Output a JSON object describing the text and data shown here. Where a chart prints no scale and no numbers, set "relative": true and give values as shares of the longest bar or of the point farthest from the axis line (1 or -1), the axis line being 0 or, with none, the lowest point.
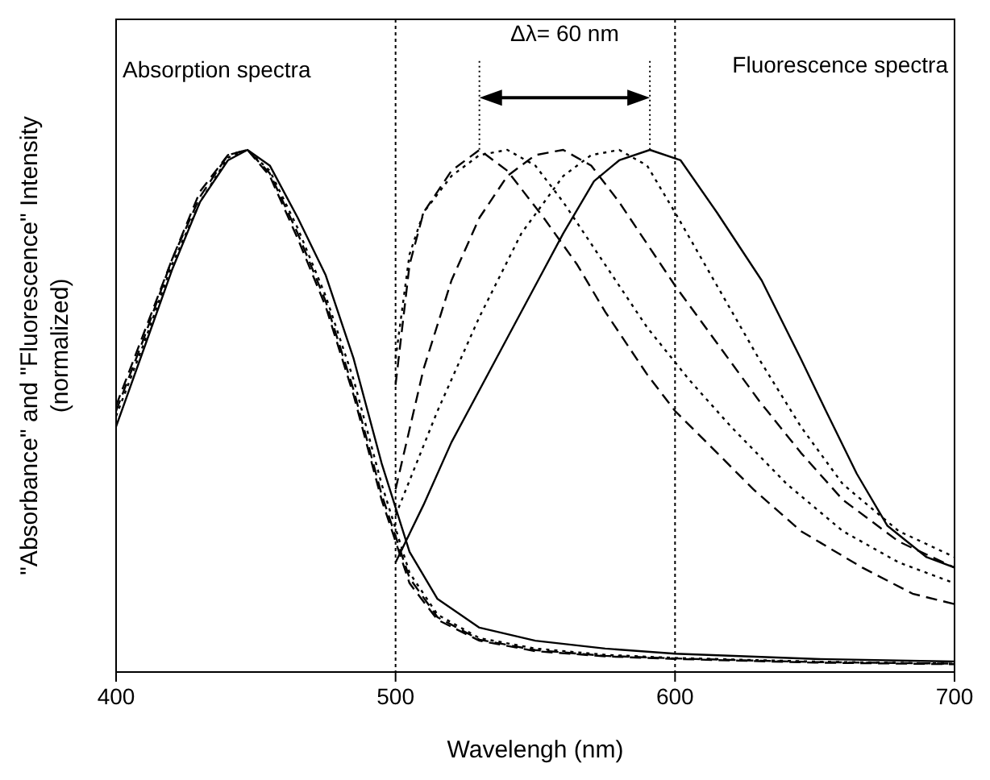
{
  "chart_data": {
    "type": "line",
    "xlabel": "Wavelengh (nm)",
    "ylabel": "\"Absorbance\" and \"Fluorescence\" Intensity (normalized)",
    "relative": true,
    "xlim": [
      400,
      700
    ],
    "xticks": [
      400,
      500,
      600,
      700
    ],
    "grid": true,
    "marker": "none",
    "annotations": [
      "Absorption spectra",
      "Fluorescence spectra",
      "Δλ= 60 nm"
    ],
    "x": [
      400,
      410,
      420,
      430,
      440,
      447,
      455,
      465,
      475,
      485,
      495,
      505,
      515,
      530,
      550,
      575,
      600,
      650,
      700
    ],
    "series": [
      {
        "color": "#000000",
        "line_style": "solid",
        "values": [
          0.47,
          0.62,
          0.77,
          0.9,
          0.98,
          1.0,
          0.97,
          0.87,
          0.76,
          0.6,
          0.4,
          0.23,
          0.14,
          0.085,
          0.06,
          0.045,
          0.035,
          0.025,
          0.02
        ]
      },
      {
        "color": "#000000",
        "line_style": "dashed",
        "values": [
          0.5,
          0.64,
          0.79,
          0.91,
          0.99,
          1.0,
          0.95,
          0.83,
          0.7,
          0.53,
          0.33,
          0.17,
          0.1,
          0.06,
          0.04,
          0.03,
          0.025,
          0.018,
          0.015
        ]
      },
      {
        "color": "#000000",
        "line_style": "dotted",
        "values": [
          0.49,
          0.63,
          0.78,
          0.9,
          0.985,
          1.0,
          0.96,
          0.85,
          0.72,
          0.56,
          0.36,
          0.19,
          0.11,
          0.065,
          0.045,
          0.033,
          0.027,
          0.02,
          0.016
        ]
      },
      {
        "color": "#000000",
        "line_style": "dashed",
        "values": [
          0.51,
          0.65,
          0.79,
          0.92,
          0.99,
          1.0,
          0.955,
          0.84,
          0.71,
          0.54,
          0.34,
          0.18,
          0.105,
          0.062,
          0.042,
          0.031,
          0.026,
          0.019,
          0.016
        ]
      },
      {
        "color": "#000000",
        "line_style": "dashed",
        "x": [
          500,
          505,
          510,
          520,
          530,
          540,
          553,
          565,
          575,
          590,
          600,
          615,
          628,
          645,
          667,
          685,
          700
        ],
        "values": [
          0.55,
          0.78,
          0.88,
          0.96,
          1.0,
          0.96,
          0.87,
          0.78,
          0.69,
          0.57,
          0.5,
          0.42,
          0.35,
          0.27,
          0.2,
          0.15,
          0.13
        ]
      },
      {
        "color": "#000000",
        "line_style": "dotted",
        "x": [
          500,
          505,
          510,
          520,
          530,
          540,
          550,
          560,
          575,
          590,
          605,
          620,
          640,
          660,
          680,
          700
        ],
        "values": [
          0.6,
          0.8,
          0.88,
          0.95,
          0.99,
          1.0,
          0.97,
          0.9,
          0.78,
          0.66,
          0.56,
          0.47,
          0.36,
          0.27,
          0.21,
          0.17
        ]
      },
      {
        "color": "#000000",
        "line_style": "dashed",
        "x": [
          500,
          510,
          520,
          530,
          540,
          550,
          560,
          570,
          580,
          590,
          600,
          615,
          630,
          645,
          660,
          680,
          700
        ],
        "values": [
          0.35,
          0.58,
          0.75,
          0.87,
          0.95,
          0.99,
          1.0,
          0.97,
          0.9,
          0.82,
          0.74,
          0.63,
          0.52,
          0.42,
          0.33,
          0.25,
          0.2
        ]
      },
      {
        "color": "#000000",
        "line_style": "dotted",
        "x": [
          500,
          515,
          530,
          545,
          560,
          570,
          580,
          590,
          600,
          615,
          630,
          645,
          660,
          680,
          700
        ],
        "values": [
          0.3,
          0.5,
          0.68,
          0.84,
          0.95,
          0.99,
          1.0,
          0.97,
          0.88,
          0.74,
          0.6,
          0.47,
          0.36,
          0.27,
          0.22
        ]
      },
      {
        "color": "#000000",
        "line_style": "solid",
        "x": [
          500,
          510,
          520,
          526,
          540,
          551,
          560,
          571,
          580,
          591,
          602,
          615,
          631,
          645,
          654,
          665,
          676,
          690,
          700
        ],
        "values": [
          0.21,
          0.32,
          0.44,
          0.5,
          0.64,
          0.75,
          0.84,
          0.94,
          0.98,
          1.0,
          0.98,
          0.88,
          0.75,
          0.6,
          0.5,
          0.38,
          0.28,
          0.22,
          0.2
        ]
      }
    ]
  }
}
